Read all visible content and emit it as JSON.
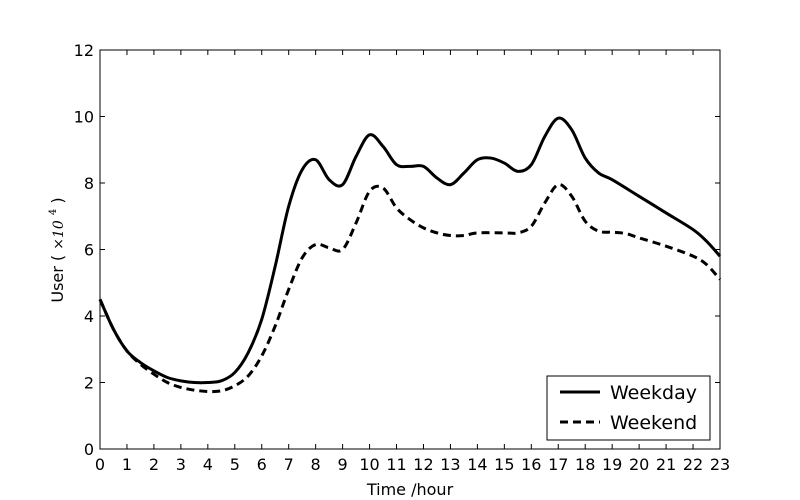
{
  "chart_data": {
    "type": "line",
    "title": "",
    "xlabel": "Time /hour",
    "ylabel": "User",
    "ylabel_unit": "×10",
    "ylabel_unit_exp": "4",
    "xlim": [
      0,
      23
    ],
    "ylim": [
      0,
      12
    ],
    "xticks": [
      "0",
      "1",
      "2",
      "3",
      "4",
      "5",
      "6",
      "7",
      "8",
      "9",
      "10",
      "11",
      "12",
      "13",
      "14",
      "15",
      "16",
      "17",
      "18",
      "19",
      "20",
      "21",
      "22",
      "23"
    ],
    "yticks": [
      "0",
      "2",
      "4",
      "6",
      "8",
      "10",
      "12"
    ],
    "grid": false,
    "legend_position": "bottom-right",
    "series": [
      {
        "name": "Weekday",
        "style": "solid",
        "color": "#000000",
        "x": [
          0,
          0.5,
          1,
          1.5,
          2,
          2.5,
          3,
          3.5,
          4,
          4.5,
          5,
          5.5,
          6,
          6.5,
          7,
          7.5,
          8,
          8.5,
          9,
          9.5,
          10,
          10.5,
          11,
          11.5,
          12,
          12.5,
          13,
          13.5,
          14,
          14.5,
          15,
          15.5,
          16,
          16.5,
          17,
          17.5,
          18,
          18.5,
          19,
          20,
          21,
          22,
          22.5,
          23
        ],
        "y": [
          4.5,
          3.6,
          2.95,
          2.6,
          2.35,
          2.15,
          2.05,
          2.0,
          2.0,
          2.05,
          2.3,
          2.9,
          3.9,
          5.5,
          7.3,
          8.4,
          8.7,
          8.1,
          7.95,
          8.8,
          9.45,
          9.1,
          8.55,
          8.5,
          8.5,
          8.15,
          7.95,
          8.3,
          8.7,
          8.75,
          8.6,
          8.35,
          8.55,
          9.4,
          9.95,
          9.6,
          8.75,
          8.3,
          8.1,
          7.6,
          7.1,
          6.6,
          6.25,
          5.8
        ]
      },
      {
        "name": "Weekend",
        "style": "dashed",
        "color": "#000000",
        "x": [
          0,
          0.5,
          1,
          1.5,
          2,
          2.5,
          3,
          3.5,
          4,
          4.5,
          5,
          5.5,
          6,
          6.5,
          7,
          7.5,
          8,
          8.5,
          9,
          9.5,
          10,
          10.5,
          11,
          11.5,
          12,
          12.5,
          13,
          13.5,
          14,
          15,
          15.5,
          16,
          16.5,
          17,
          17.5,
          18,
          18.5,
          19,
          19.5,
          20,
          21,
          22,
          22.5,
          23
        ],
        "y": [
          4.5,
          3.6,
          2.95,
          2.55,
          2.25,
          2.0,
          1.85,
          1.77,
          1.73,
          1.75,
          1.9,
          2.2,
          2.8,
          3.7,
          4.8,
          5.75,
          6.15,
          6.05,
          6.0,
          6.8,
          7.75,
          7.85,
          7.25,
          6.9,
          6.65,
          6.5,
          6.42,
          6.42,
          6.5,
          6.5,
          6.5,
          6.7,
          7.4,
          7.95,
          7.6,
          6.85,
          6.55,
          6.52,
          6.48,
          6.35,
          6.1,
          5.8,
          5.55,
          5.1
        ]
      }
    ]
  }
}
